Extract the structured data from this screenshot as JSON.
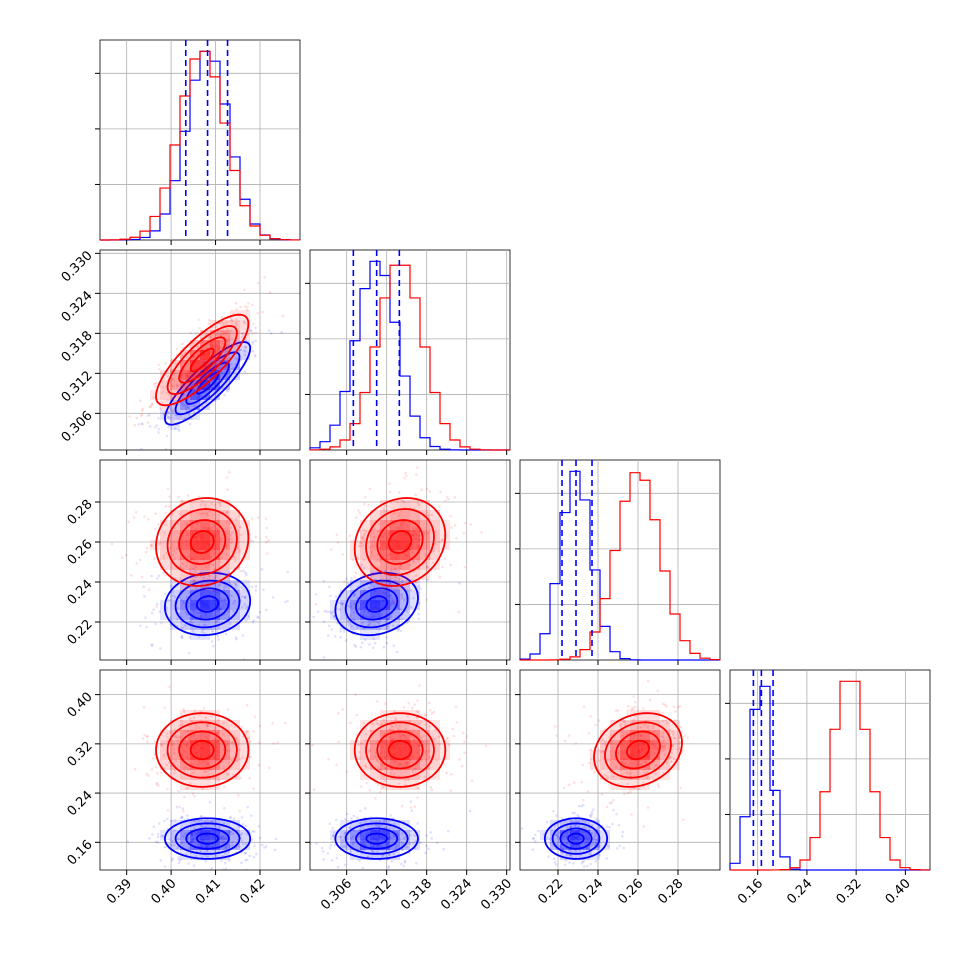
{
  "chart_data": {
    "type": "corner",
    "parameters": [
      "",
      "",
      "",
      ""
    ],
    "series": [
      {
        "color": "#0000ff",
        "median": [
          0.4082,
          0.3105,
          0.229,
          0.166
        ],
        "std": [
          0.0048,
          0.0031,
          0.0078,
          0.0165
        ],
        "quantiles": [
          [
            0.4033,
            0.4082,
            0.4127
          ],
          [
            0.307,
            0.3105,
            0.3139
          ],
          [
            0.222,
            0.229,
            0.237
          ],
          [
            0.153,
            0.166,
            0.185
          ]
        ],
        "correlations": [
          [
            0,
            1,
            0.85
          ],
          [
            0,
            2,
            0.1
          ],
          [
            1,
            2,
            0.2
          ]
        ]
      },
      {
        "color": "#ff0000",
        "median": [
          0.407,
          0.314,
          0.26,
          0.31
        ],
        "std": [
          0.0052,
          0.0034,
          0.011,
          0.03
        ],
        "correlations": [
          [
            0,
            1,
            0.8
          ],
          [
            0,
            2,
            0.1
          ],
          [
            1,
            2,
            0.15
          ],
          [
            2,
            3,
            0.2
          ]
        ]
      }
    ],
    "ranges": [
      [
        0.384,
        0.429
      ],
      [
        0.3005,
        0.3305
      ],
      [
        0.201,
        0.301
      ],
      [
        0.115,
        0.44
      ]
    ],
    "ticks": [
      [
        0.39,
        0.4,
        0.41,
        0.42
      ],
      [
        0.306,
        0.312,
        0.318,
        0.324,
        0.33
      ],
      [
        0.22,
        0.24,
        0.26,
        0.28
      ],
      [
        0.16,
        0.24,
        0.32,
        0.4
      ]
    ],
    "tick_labels": [
      [
        "0.39",
        "0.40",
        "0.41",
        "0.42"
      ],
      [
        "0.306",
        "0.312",
        "0.318",
        "0.324",
        "0.330"
      ],
      [
        "0.22",
        "0.24",
        "0.26",
        "0.28"
      ],
      [
        "0.16",
        "0.24",
        "0.32",
        "0.40"
      ]
    ],
    "quantile_lines": [
      0.16,
      0.5,
      0.84
    ],
    "quantile_line_color": "#0000ff",
    "grid": true
  }
}
